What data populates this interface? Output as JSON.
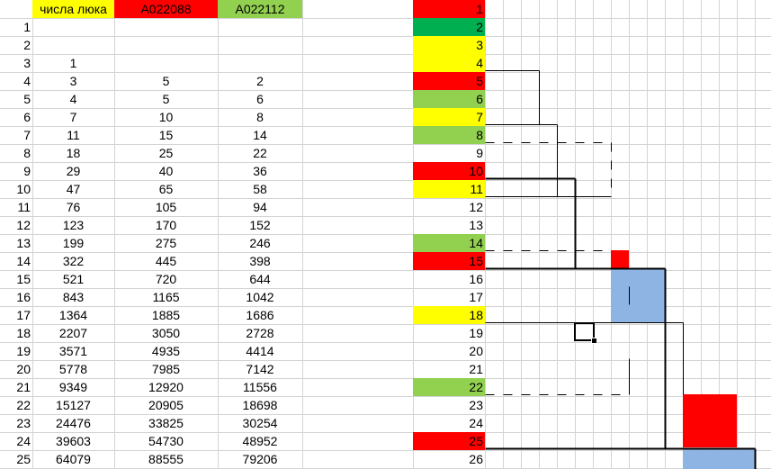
{
  "colors": {
    "yellow": "#ffff00",
    "red": "#ff0000",
    "light_green": "#92d050",
    "dark_green": "#00b050",
    "blue": "#8eb4e3",
    "gridline": "#d4d4d4"
  },
  "headers": {
    "lucas": "числа люка",
    "a022088": "A022088",
    "a022112": "A022112"
  },
  "rows": [
    {
      "n": "1",
      "lucas": "",
      "a1": "",
      "a2": ""
    },
    {
      "n": "2",
      "lucas": "",
      "a1": "",
      "a2": ""
    },
    {
      "n": "3",
      "lucas": "1",
      "a1": "",
      "a2": ""
    },
    {
      "n": "4",
      "lucas": "3",
      "a1": "5",
      "a2": "2"
    },
    {
      "n": "5",
      "lucas": "4",
      "a1": "5",
      "a2": "6"
    },
    {
      "n": "6",
      "lucas": "7",
      "a1": "10",
      "a2": "8"
    },
    {
      "n": "7",
      "lucas": "11",
      "a1": "15",
      "a2": "14"
    },
    {
      "n": "8",
      "lucas": "18",
      "a1": "25",
      "a2": "22"
    },
    {
      "n": "9",
      "lucas": "29",
      "a1": "40",
      "a2": "36"
    },
    {
      "n": "10",
      "lucas": "47",
      "a1": "65",
      "a2": "58"
    },
    {
      "n": "11",
      "lucas": "76",
      "a1": "105",
      "a2": "94"
    },
    {
      "n": "12",
      "lucas": "123",
      "a1": "170",
      "a2": "152"
    },
    {
      "n": "13",
      "lucas": "199",
      "a1": "275",
      "a2": "246"
    },
    {
      "n": "14",
      "lucas": "322",
      "a1": "445",
      "a2": "398"
    },
    {
      "n": "15",
      "lucas": "521",
      "a1": "720",
      "a2": "644"
    },
    {
      "n": "16",
      "lucas": "843",
      "a1": "1165",
      "a2": "1042"
    },
    {
      "n": "17",
      "lucas": "1364",
      "a1": "1885",
      "a2": "1686"
    },
    {
      "n": "18",
      "lucas": "2207",
      "a1": "3050",
      "a2": "2728"
    },
    {
      "n": "19",
      "lucas": "3571",
      "a1": "4935",
      "a2": "4414"
    },
    {
      "n": "20",
      "lucas": "5778",
      "a1": "7985",
      "a2": "7142"
    },
    {
      "n": "21",
      "lucas": "9349",
      "a1": "12920",
      "a2": "11556"
    },
    {
      "n": "22",
      "lucas": "15127",
      "a1": "20905",
      "a2": "18698"
    },
    {
      "n": "23",
      "lucas": "24476",
      "a1": "33825",
      "a2": "30254"
    },
    {
      "n": "24",
      "lucas": "39603",
      "a1": "54730",
      "a2": "48952"
    },
    {
      "n": "25",
      "lucas": "64079",
      "a1": "88555",
      "a2": "79206"
    }
  ],
  "right_column": [
    {
      "v": "1",
      "fill": "red"
    },
    {
      "v": "2",
      "fill": "dark_green"
    },
    {
      "v": "3",
      "fill": "yellow"
    },
    {
      "v": "4",
      "fill": "yellow"
    },
    {
      "v": "5",
      "fill": "red"
    },
    {
      "v": "6",
      "fill": "light_green"
    },
    {
      "v": "7",
      "fill": "yellow"
    },
    {
      "v": "8",
      "fill": "light_green"
    },
    {
      "v": "9",
      "fill": ""
    },
    {
      "v": "10",
      "fill": "red"
    },
    {
      "v": "11",
      "fill": "yellow"
    },
    {
      "v": "12",
      "fill": ""
    },
    {
      "v": "13",
      "fill": ""
    },
    {
      "v": "14",
      "fill": "light_green"
    },
    {
      "v": "15",
      "fill": "red"
    },
    {
      "v": "16",
      "fill": ""
    },
    {
      "v": "17",
      "fill": ""
    },
    {
      "v": "18",
      "fill": "yellow"
    },
    {
      "v": "19",
      "fill": ""
    },
    {
      "v": "20",
      "fill": ""
    },
    {
      "v": "21",
      "fill": ""
    },
    {
      "v": "22",
      "fill": "light_green"
    },
    {
      "v": "23",
      "fill": ""
    },
    {
      "v": "24",
      "fill": ""
    },
    {
      "v": "25",
      "fill": "red"
    },
    {
      "v": "26",
      "fill": ""
    }
  ]
}
